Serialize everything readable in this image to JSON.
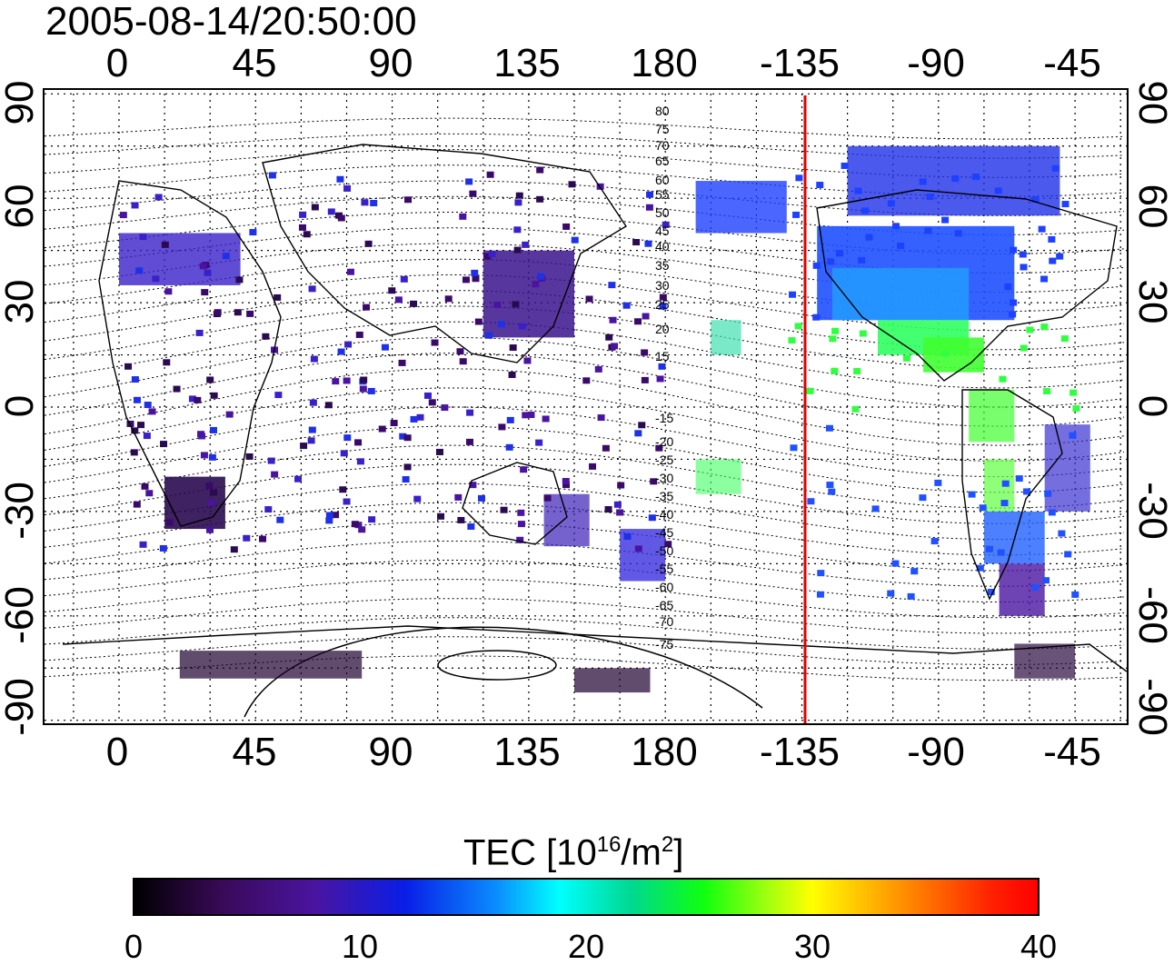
{
  "timestamp": "2005-08-14/20:50:00",
  "map": {
    "longitude_tick_labels_top": [
      "0",
      "45",
      "90",
      "135",
      "180",
      "-135",
      "-90",
      "-45"
    ],
    "longitude_tick_labels_bottom": [
      "0",
      "45",
      "90",
      "135",
      "180",
      "-135",
      "-90",
      "-45"
    ],
    "latitude_tick_labels_left": [
      "90",
      "60",
      "30",
      "0",
      "-30",
      "-60",
      "-90"
    ],
    "latitude_tick_labels_right": [
      "90",
      "60",
      "30",
      "0",
      "-30",
      "-60",
      "-90"
    ],
    "magnetic_latitude_contour_labels": [
      "80",
      "75",
      "70",
      "65",
      "60",
      "55",
      "50",
      "45",
      "40",
      "35",
      "30",
      "25",
      "20",
      "15",
      "-15",
      "-20",
      "-25",
      "-30",
      "-35",
      "-40",
      "-45",
      "-50",
      "-55",
      "-60",
      "-65",
      "-70",
      "-75"
    ],
    "terminator_longitude": -135,
    "terminator_color": "#e00000"
  },
  "colorbar": {
    "title": "TEC  [10",
    "title_sup": "16",
    "title_tail": "/m",
    "title_sup2": "2",
    "title_end": "]",
    "tick_labels": [
      "0",
      "10",
      "20",
      "30",
      "40"
    ],
    "range": [
      0,
      40
    ],
    "colors": [
      "#000000",
      "#4a14a0",
      "#0a1ee6",
      "#00ffff",
      "#10ff10",
      "#ffff00",
      "#ff0000"
    ]
  }
}
